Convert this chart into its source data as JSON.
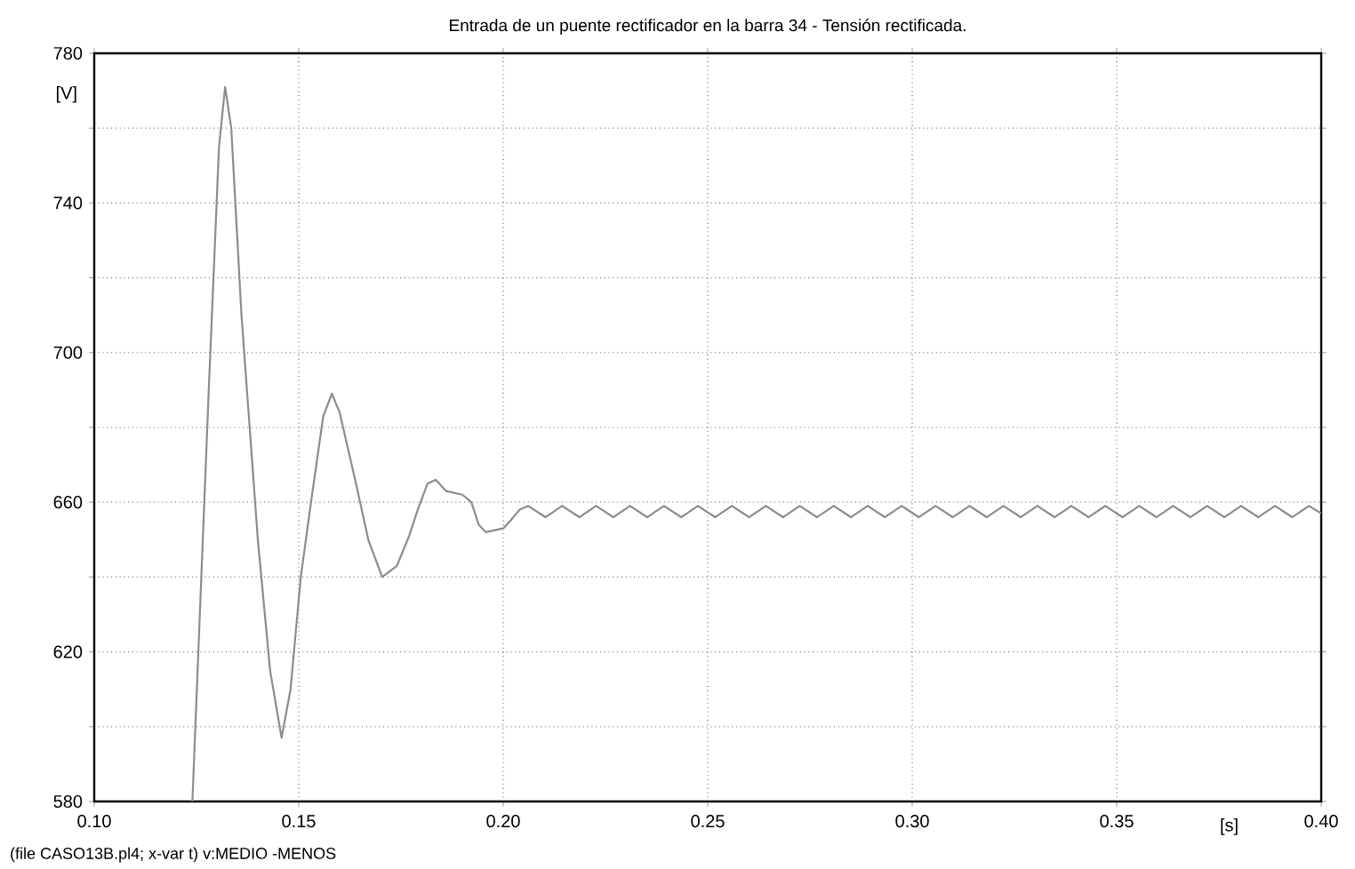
{
  "chart_data": {
    "type": "line",
    "title": "Entrada de un puente rectificador en la barra 34 - Tensión rectificada.",
    "xlabel": "[s]",
    "ylabel": "[V]",
    "annotations": [
      "(file CASO13B.pl4; x-var t)  v:MEDIO -MENOS"
    ],
    "xlim": [
      0.1,
      0.4
    ],
    "ylim": [
      580,
      780
    ],
    "xticks": [
      {
        "value": 0.1,
        "label": "0.10"
      },
      {
        "value": 0.15,
        "label": "0.15"
      },
      {
        "value": 0.2,
        "label": "0.20"
      },
      {
        "value": 0.25,
        "label": "0.25"
      },
      {
        "value": 0.3,
        "label": "0.30"
      },
      {
        "value": 0.35,
        "label": "0.35"
      },
      {
        "value": 0.4,
        "label": "0.40"
      }
    ],
    "yticks": [
      580,
      {
        "value": 600,
        "label": null
      },
      620,
      {
        "value": 640,
        "label": null
      },
      660,
      {
        "value": 680,
        "label": null
      },
      700,
      {
        "value": 720,
        "label": null
      },
      740,
      {
        "value": 760,
        "label": null
      },
      780
    ],
    "grid": true,
    "line_style": "solid",
    "series": [
      {
        "color": "#8c8c8c",
        "x": [
          0.124,
          0.128,
          0.1305,
          0.132,
          0.1335,
          0.136,
          0.14,
          0.143,
          0.1458,
          0.148,
          0.1505,
          0.153,
          0.156,
          0.1581,
          0.16,
          0.164,
          0.167,
          0.1704,
          0.174,
          0.177,
          0.1791,
          0.1815,
          0.1835,
          0.186,
          0.19,
          0.1922,
          0.194,
          0.1957,
          0.2,
          0.2017,
          0.204,
          0.2061,
          0.2103,
          0.2144,
          0.2186,
          0.2227,
          0.2269,
          0.231,
          0.2352,
          0.2393,
          0.2435,
          0.2476,
          0.2518,
          0.2559,
          0.2601,
          0.2642,
          0.2684,
          0.2725,
          0.2767,
          0.2808,
          0.285,
          0.2891,
          0.2933,
          0.2974,
          0.3016,
          0.3057,
          0.3099,
          0.314,
          0.3182,
          0.3223,
          0.3265,
          0.3306,
          0.3348,
          0.3389,
          0.3431,
          0.3472,
          0.3514,
          0.3555,
          0.3597,
          0.3638,
          0.368,
          0.3721,
          0.3763,
          0.3804,
          0.3846,
          0.3887,
          0.3929,
          0.397,
          0.4
        ],
        "values": [
          580,
          690,
          755,
          771,
          760,
          710,
          650,
          615,
          597,
          610,
          640,
          660,
          683,
          689,
          684,
          665,
          650,
          640,
          643,
          651,
          658,
          665,
          666,
          663,
          662,
          660,
          654,
          652,
          653,
          655,
          658,
          659,
          656,
          659,
          656,
          659,
          656,
          659,
          656,
          659,
          656,
          659,
          656,
          659,
          656,
          659,
          656,
          659,
          656,
          659,
          656,
          659,
          656,
          659,
          656,
          659,
          656,
          659,
          656,
          659,
          656,
          659,
          656,
          659,
          656,
          659,
          656,
          659,
          656,
          659,
          656,
          659,
          656,
          659,
          656,
          659,
          656,
          659,
          657
        ]
      }
    ]
  }
}
